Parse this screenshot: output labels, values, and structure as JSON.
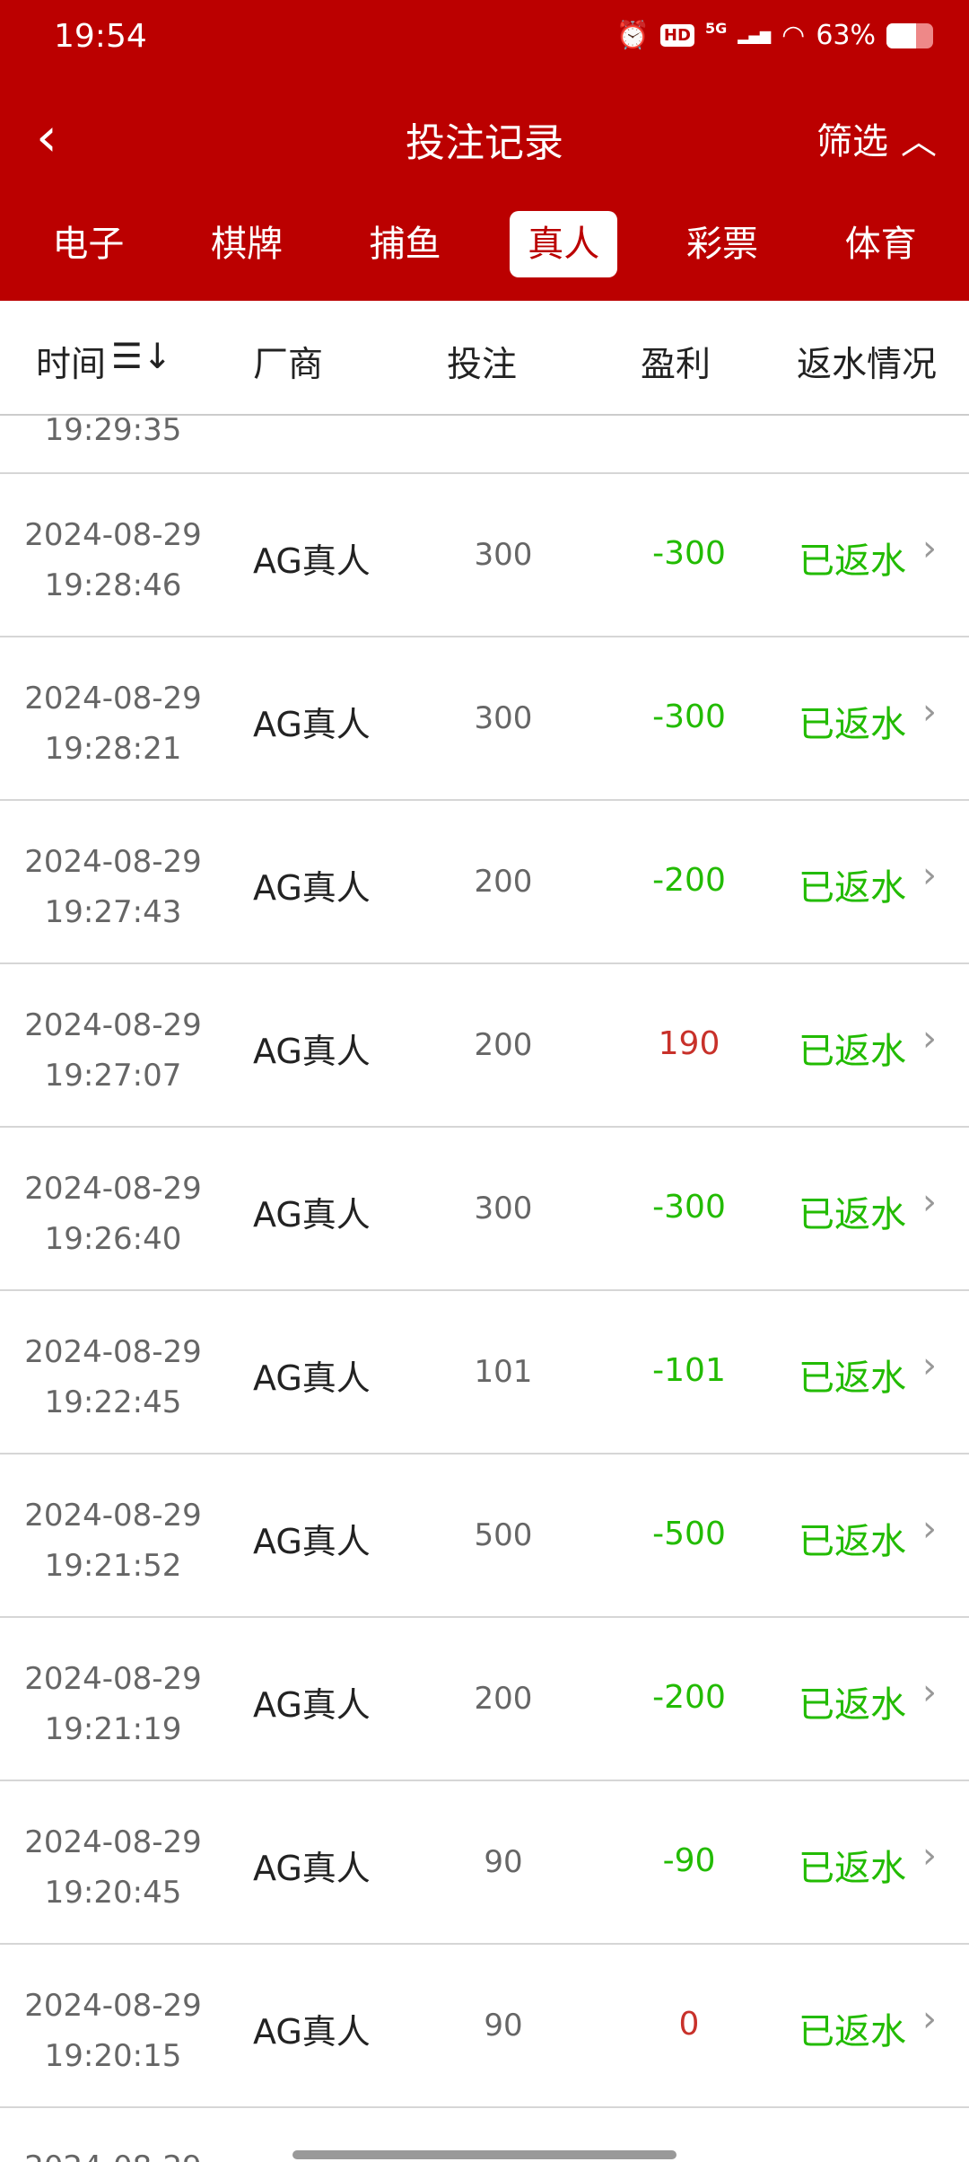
{
  "status_bar": {
    "time": "19:54",
    "network": "5G",
    "battery": "63%",
    "battery_level": 0.63,
    "icons": [
      "alarm-icon",
      "hd-icon",
      "signal-icon",
      "wifi-icon",
      "battery-icon"
    ]
  },
  "header": {
    "title": "投注记录",
    "filter_label": "筛选"
  },
  "tabs": [
    {
      "label": "电子"
    },
    {
      "label": "棋牌"
    },
    {
      "label": "捕鱼"
    },
    {
      "label": "真人",
      "active": true
    },
    {
      "label": "彩票"
    },
    {
      "label": "体育"
    }
  ],
  "columns": {
    "time": "时间",
    "vendor": "厂商",
    "bet": "投注",
    "profit": "盈利",
    "status": "返水情况"
  },
  "partial_top_time": "19:29:35",
  "partial_bottom_date": "2024-08-29",
  "rows": [
    {
      "date": "2024-08-29",
      "time": "19:28:46",
      "vendor": "AG真人",
      "bet": "300",
      "profit": "-300",
      "status": "已返水"
    },
    {
      "date": "2024-08-29",
      "time": "19:28:21",
      "vendor": "AG真人",
      "bet": "300",
      "profit": "-300",
      "status": "已返水"
    },
    {
      "date": "2024-08-29",
      "time": "19:27:43",
      "vendor": "AG真人",
      "bet": "200",
      "profit": "-200",
      "status": "已返水"
    },
    {
      "date": "2024-08-29",
      "time": "19:27:07",
      "vendor": "AG真人",
      "bet": "200",
      "profit": "190",
      "status": "已返水"
    },
    {
      "date": "2024-08-29",
      "time": "19:26:40",
      "vendor": "AG真人",
      "bet": "300",
      "profit": "-300",
      "status": "已返水"
    },
    {
      "date": "2024-08-29",
      "time": "19:22:45",
      "vendor": "AG真人",
      "bet": "101",
      "profit": "-101",
      "status": "已返水"
    },
    {
      "date": "2024-08-29",
      "time": "19:21:52",
      "vendor": "AG真人",
      "bet": "500",
      "profit": "-500",
      "status": "已返水"
    },
    {
      "date": "2024-08-29",
      "time": "19:21:19",
      "vendor": "AG真人",
      "bet": "200",
      "profit": "-200",
      "status": "已返水"
    },
    {
      "date": "2024-08-29",
      "time": "19:20:45",
      "vendor": "AG真人",
      "bet": "90",
      "profit": "-90",
      "status": "已返水"
    },
    {
      "date": "2024-08-29",
      "time": "19:20:15",
      "vendor": "AG真人",
      "bet": "90",
      "profit": "0",
      "status": "已返水"
    }
  ],
  "colors": {
    "brand": "#BB0000",
    "loss": "#22BB00",
    "win": "#C8312A",
    "status": "#22BB00"
  }
}
